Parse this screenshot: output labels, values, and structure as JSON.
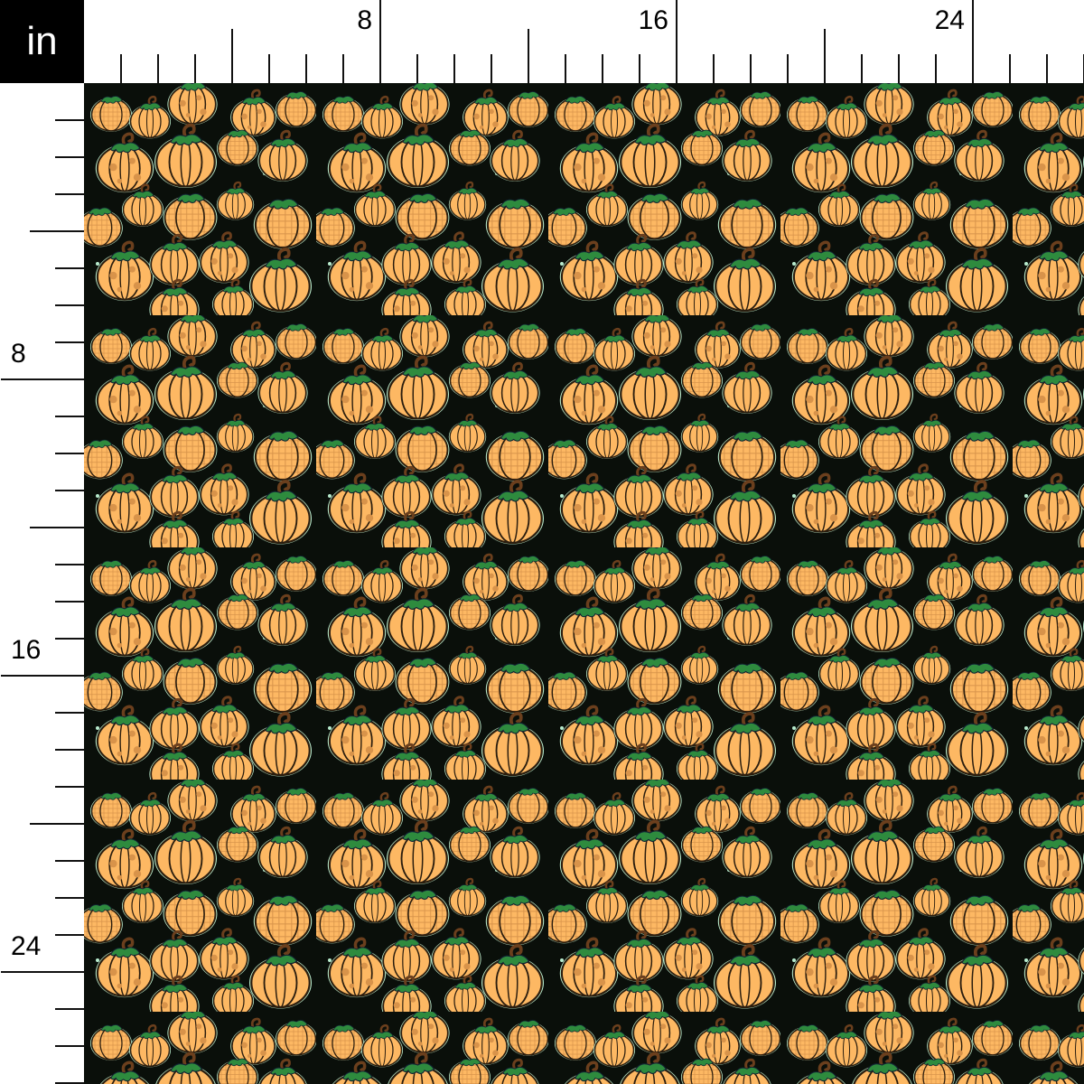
{
  "unit_label": "in",
  "top_ruler": {
    "labels": [
      "8",
      "16",
      "24"
    ]
  },
  "left_ruler": {
    "labels": [
      "8",
      "16",
      "24"
    ]
  },
  "pattern": {
    "motif": "pumpkins",
    "colors": {
      "pumpkin": "#fdb863",
      "outline": "#2b1d0e",
      "spots": "#d8934a",
      "leaf": "#2e8b3e",
      "stem": "#6b3f1d",
      "background": "#0a0f0a",
      "dots": "#b9ecce"
    }
  }
}
